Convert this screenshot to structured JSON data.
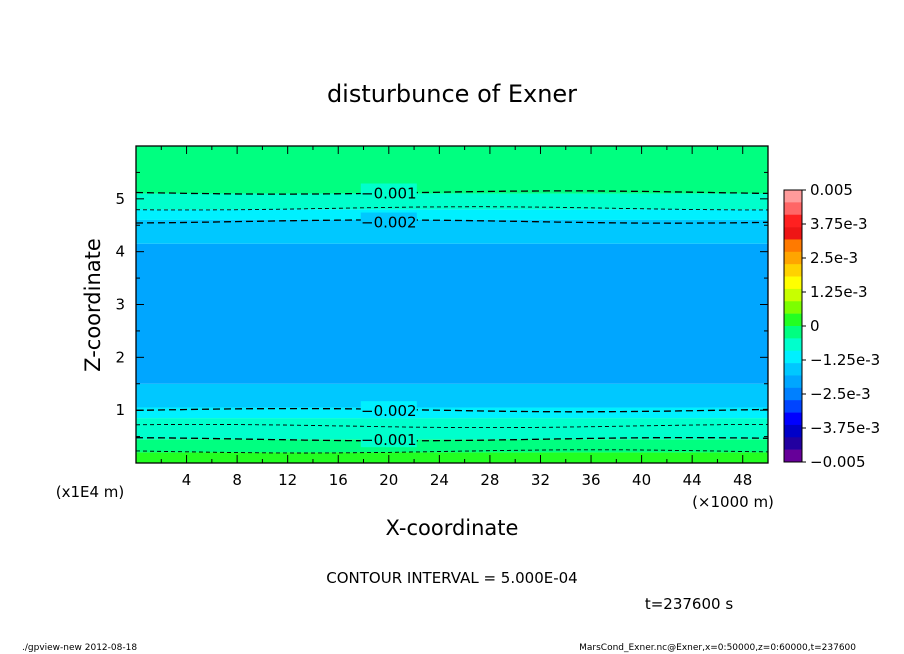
{
  "chart_data": {
    "type": "heatmap",
    "title": "disturbunce of Exner",
    "xlabel": "X-coordinate",
    "ylabel": "Z-coordinate",
    "xlim": [
      0,
      50000
    ],
    "ylim": [
      0,
      60000
    ],
    "x_unit": "(×1000 m)",
    "y_unit": "(x1E4 m)",
    "x_ticks": [
      4,
      8,
      12,
      16,
      20,
      24,
      28,
      32,
      36,
      40,
      44,
      48
    ],
    "y_ticks": [
      1,
      2,
      3,
      4,
      5
    ],
    "colorbar": {
      "labels": [
        "0.005",
        "3.75e-3",
        "2.5e-3",
        "1.25e-3",
        "0",
        "−1.25e-3",
        "−2.5e-3",
        "−3.75e-3",
        "−0.005"
      ],
      "colors": [
        "#ff9b9b",
        "#ff6666",
        "#ff2020",
        "#ee1515",
        "#ff7a00",
        "#ffa500",
        "#ffd200",
        "#ffff00",
        "#c8ff00",
        "#7cff00",
        "#22ff22",
        "#00ff80",
        "#00ffcc",
        "#00f0ff",
        "#00c8ff",
        "#00a6ff",
        "#0080ff",
        "#0044ff",
        "#0000ff",
        "#0000c8",
        "#2200a0",
        "#660099"
      ]
    },
    "z_bands": [
      {
        "z": [
          0,
          2000
        ],
        "value": 5e-05,
        "color": "#22ff22"
      },
      {
        "z": [
          2000,
          4500
        ],
        "value": -0.00025,
        "color": "#00ff80"
      },
      {
        "z": [
          4500,
          8500
        ],
        "value": -0.00075,
        "color": "#00ffcc"
      },
      {
        "z": [
          8500,
          10500
        ],
        "value": -0.00125,
        "color": "#00f0ff"
      },
      {
        "z": [
          10500,
          15000
        ],
        "value": -0.00175,
        "color": "#00c8ff"
      },
      {
        "z": [
          15000,
          41500
        ],
        "value": -0.00225,
        "color": "#00a6ff"
      },
      {
        "z": [
          41500,
          46000
        ],
        "value": -0.00175,
        "color": "#00c8ff"
      },
      {
        "z": [
          46000,
          48000
        ],
        "value": -0.00125,
        "color": "#00f0ff"
      },
      {
        "z": [
          48000,
          51000
        ],
        "value": -0.00075,
        "color": "#00ffcc"
      },
      {
        "z": [
          51000,
          60000
        ],
        "value": -0.00025,
        "color": "#00ff80"
      }
    ],
    "contours": [
      {
        "z": 51200,
        "level": -0.001,
        "major": true,
        "label": "−0.001",
        "label_x": 20000
      },
      {
        "z": 48200,
        "level": -0.0015,
        "major": false
      },
      {
        "z": 45700,
        "level": -0.002,
        "major": true,
        "label": "−0.002",
        "label_x": 20000
      },
      {
        "z": 10000,
        "level": -0.002,
        "major": true,
        "label": "−0.002",
        "label_x": 20000
      },
      {
        "z": 7000,
        "level": -0.0015,
        "major": false
      },
      {
        "z": 4500,
        "level": -0.001,
        "major": true,
        "label": "−0.001",
        "label_x": 20000
      },
      {
        "z": 2200,
        "level": -0.0005,
        "major": false
      }
    ],
    "contour_interval": "CONTOUR INTERVAL = 5.000E-04",
    "time": "t=237600 s"
  },
  "footer": {
    "left": "./gpview-new   2012-08-18",
    "right": "MarsCond_Exner.nc@Exner,x=0:50000,z=0:60000,t=237600"
  }
}
